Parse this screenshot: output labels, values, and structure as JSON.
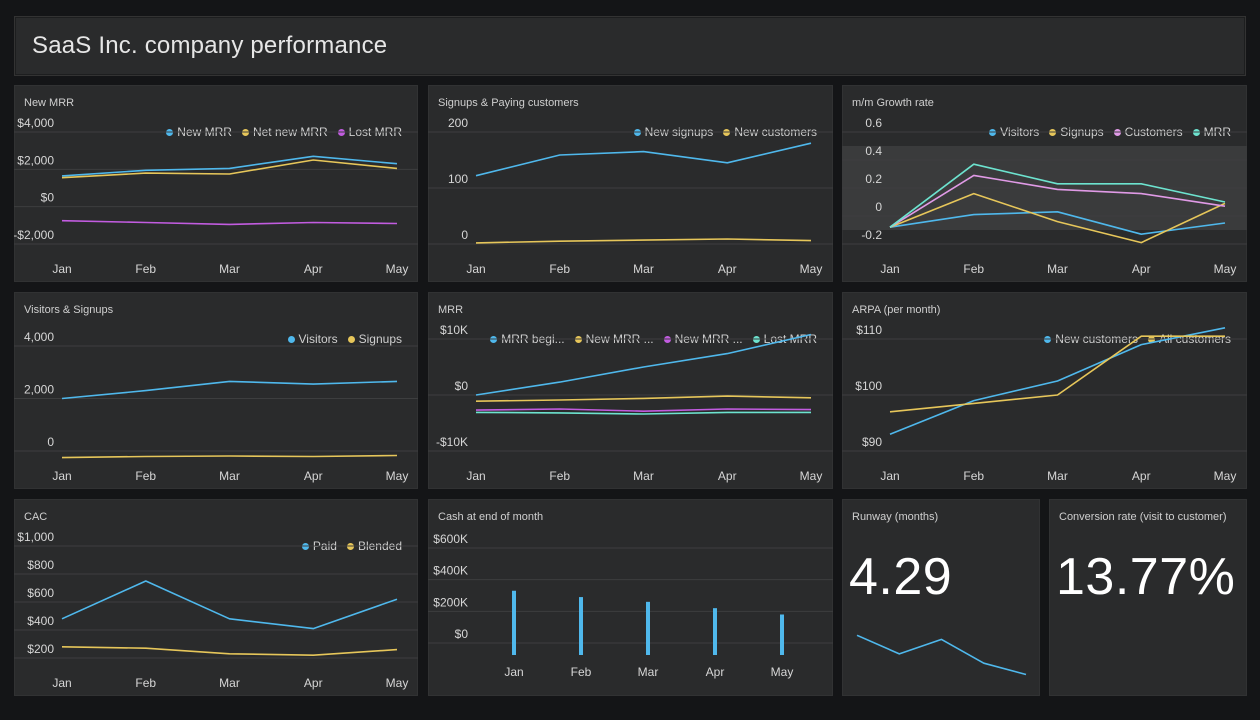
{
  "dashboard": {
    "title": "SaaS Inc. company performance"
  },
  "colors": {
    "blue": "#4fb8ec",
    "yellow": "#e6c65a",
    "purple": "#c25ce0",
    "teal": "#6de3cf",
    "pink": "#e09ae6",
    "grid": "#3d3e3f",
    "band": "#3a3b3c"
  },
  "cards": {
    "new_mrr": {
      "title": "New MRR"
    },
    "signups": {
      "title": "Signups & Paying customers"
    },
    "growth": {
      "title": "m/m Growth rate"
    },
    "visitors": {
      "title": "Visitors & Signups"
    },
    "mrr": {
      "title": "MRR"
    },
    "arpa": {
      "title": "ARPA (per month)"
    },
    "cac": {
      "title": "CAC"
    },
    "cash": {
      "title": "Cash at end of month"
    },
    "runway": {
      "title": "Runway (months)",
      "value": "4.29"
    },
    "conversion": {
      "title": "Conversion rate (visit to customer)",
      "value": "13.77%"
    }
  },
  "chart_data": [
    {
      "id": "new_mrr",
      "type": "line",
      "categories": [
        "Jan",
        "Feb",
        "Mar",
        "Apr",
        "May"
      ],
      "ylim": [
        -2000,
        4000
      ],
      "ytick_values": [
        -2000,
        0,
        2000,
        4000
      ],
      "ytick_labels": [
        "-$2,000",
        "$0",
        "$2,000",
        "$4,000"
      ],
      "series": [
        {
          "name": "New MRR",
          "color": "blue",
          "values": [
            1650,
            1950,
            2050,
            2700,
            2300
          ]
        },
        {
          "name": "Net new MRR",
          "color": "yellow",
          "values": [
            1550,
            1800,
            1750,
            2500,
            2050
          ]
        },
        {
          "name": "Lost MRR",
          "color": "purple",
          "values": [
            -750,
            -850,
            -950,
            -850,
            -900
          ]
        }
      ]
    },
    {
      "id": "signups",
      "type": "line",
      "categories": [
        "Jan",
        "Feb",
        "Mar",
        "Apr",
        "May"
      ],
      "ylim": [
        0,
        200
      ],
      "ytick_values": [
        0,
        100,
        200
      ],
      "ytick_labels": [
        "0",
        "100",
        "200"
      ],
      "series": [
        {
          "name": "New signups",
          "color": "blue",
          "values": [
            122,
            159,
            165,
            145,
            180
          ]
        },
        {
          "name": "New customers",
          "color": "yellow",
          "values": [
            2,
            5,
            7,
            9,
            6
          ]
        }
      ]
    },
    {
      "id": "growth",
      "type": "line",
      "categories": [
        "Jan",
        "Feb",
        "Mar",
        "Apr",
        "May"
      ],
      "ylim": [
        -0.2,
        0.6
      ],
      "ytick_values": [
        -0.2,
        0,
        0.2,
        0.4,
        0.6
      ],
      "ytick_labels": [
        "-0.2",
        "0",
        "0.2",
        "0.4",
        "0.6"
      ],
      "band": [
        -0.1,
        0.5
      ],
      "series": [
        {
          "name": "Visitors",
          "color": "blue",
          "values": [
            -0.08,
            0.01,
            0.03,
            -0.13,
            -0.05
          ]
        },
        {
          "name": "Signups",
          "color": "yellow",
          "values": [
            -0.08,
            0.16,
            -0.04,
            -0.19,
            0.09
          ]
        },
        {
          "name": "Customers",
          "color": "pink",
          "values": [
            -0.08,
            0.29,
            0.19,
            0.16,
            0.07
          ]
        },
        {
          "name": "MRR",
          "color": "teal",
          "values": [
            -0.08,
            0.37,
            0.23,
            0.23,
            0.1
          ]
        }
      ]
    },
    {
      "id": "visitors",
      "type": "line",
      "categories": [
        "Jan",
        "Feb",
        "Mar",
        "Apr",
        "May"
      ],
      "ylim": [
        0,
        4000
      ],
      "ytick_values": [
        0,
        2000,
        4000
      ],
      "ytick_labels": [
        "0",
        "2,000",
        "4,000"
      ],
      "series": [
        {
          "name": "Visitors",
          "color": "blue",
          "values": [
            2000,
            2300,
            2650,
            2550,
            2650
          ]
        },
        {
          "name": "Signups",
          "color": "yellow",
          "values": [
            -250,
            -210,
            -190,
            -210,
            -170
          ]
        }
      ]
    },
    {
      "id": "mrr",
      "type": "line",
      "categories": [
        "Jan",
        "Feb",
        "Mar",
        "Apr",
        "May"
      ],
      "ylim": [
        -10000,
        10000
      ],
      "ytick_values": [
        -10000,
        0,
        10000
      ],
      "ytick_labels": [
        "-$10K",
        "$0",
        "$10K"
      ],
      "series": [
        {
          "name": "MRR begi...",
          "color": "blue",
          "values": [
            0,
            2300,
            5000,
            7400,
            10800
          ]
        },
        {
          "name": "New MRR ...",
          "color": "yellow",
          "values": [
            -1100,
            -900,
            -600,
            -200,
            -500
          ]
        },
        {
          "name": "New MRR ...",
          "color": "purple",
          "values": [
            -2700,
            -2500,
            -2900,
            -2500,
            -2600
          ]
        },
        {
          "name": "Lost MRR",
          "color": "teal",
          "values": [
            -3100,
            -3200,
            -3400,
            -3100,
            -3100
          ]
        }
      ]
    },
    {
      "id": "arpa",
      "type": "line",
      "categories": [
        "Jan",
        "Feb",
        "Mar",
        "Apr",
        "May"
      ],
      "ylim": [
        90,
        110
      ],
      "ytick_values": [
        90,
        100,
        110
      ],
      "ytick_labels": [
        "$90",
        "$100",
        "$110"
      ],
      "series": [
        {
          "name": "New customers",
          "color": "blue",
          "values": [
            93,
            99,
            102.5,
            109,
            112
          ]
        },
        {
          "name": "All customers",
          "color": "yellow",
          "values": [
            97,
            98.5,
            100,
            110.5,
            110.5
          ]
        }
      ]
    },
    {
      "id": "cac",
      "type": "line",
      "categories": [
        "Jan",
        "Feb",
        "Mar",
        "Apr",
        "May"
      ],
      "ylim": [
        200,
        1000
      ],
      "ytick_values": [
        200,
        400,
        600,
        800,
        1000
      ],
      "ytick_labels": [
        "$200",
        "$400",
        "$600",
        "$800",
        "$1,000"
      ],
      "series": [
        {
          "name": "Paid",
          "color": "blue",
          "values": [
            480,
            750,
            480,
            410,
            620
          ]
        },
        {
          "name": "Blended",
          "color": "yellow",
          "values": [
            280,
            270,
            230,
            220,
            260
          ]
        }
      ]
    },
    {
      "id": "cash",
      "type": "bar",
      "categories": [
        "Jan",
        "Feb",
        "Mar",
        "Apr",
        "May"
      ],
      "ylim": [
        0,
        600000
      ],
      "ytick_values": [
        0,
        200000,
        400000,
        600000
      ],
      "ytick_labels": [
        "$0",
        "$200K",
        "$400K",
        "$600K"
      ],
      "series": [
        {
          "name": "",
          "color": "blue",
          "values": [
            330000,
            290000,
            260000,
            220000,
            180000
          ]
        }
      ]
    },
    {
      "id": "runway",
      "type": "line",
      "categories": [
        1,
        2,
        3,
        4,
        5
      ],
      "series": [
        {
          "name": "",
          "color": "blue",
          "values": [
            9.2,
            7.4,
            8.8,
            6.5,
            5.4
          ]
        }
      ]
    }
  ]
}
